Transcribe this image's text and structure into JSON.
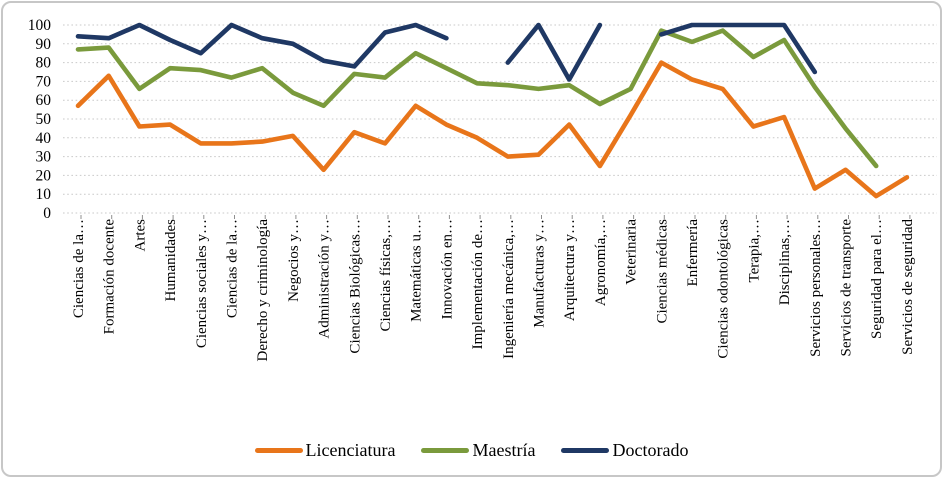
{
  "chart_data": {
    "type": "line",
    "title": "",
    "xlabel": "",
    "ylabel": "",
    "ylim": [
      0,
      100
    ],
    "ytick_step": 10,
    "ytick_labels": [
      "0",
      "10",
      "20",
      "30",
      "40",
      "50",
      "60",
      "70",
      "80",
      "90",
      "100"
    ],
    "grid": "horizontal-dotted",
    "legend_position": "bottom",
    "categories": [
      "Ciencias de la…",
      "Formación docente",
      "Artes",
      "Humanidades",
      "Ciencias sociales y…",
      "Ciencias de la…",
      "Derecho y criminología",
      "Negocios y…",
      "Administración y…",
      "Ciencias Biológicas…",
      "Ciencias físicas,…",
      "Matemáticas u…",
      "Innovación en…",
      "Implementación de…",
      "Ingeniería mecánica,…",
      "Manufacturas y…",
      "Arquitectura y…",
      "Agronomía,…",
      "Veterinaria",
      "Ciencias médicas",
      "Enfermería",
      "Ciencias odontológicas",
      "Terapia,…",
      "Disciplinas,…",
      "Servicios personales…",
      "Servicios de transporte",
      "Seguridad para el…",
      "Servicios de seguridad"
    ],
    "series": [
      {
        "name": "Licenciatura",
        "color": "#E8751A",
        "values": [
          57,
          73,
          46,
          47,
          37,
          37,
          38,
          41,
          23,
          43,
          37,
          57,
          47,
          40,
          30,
          31,
          47,
          25,
          52,
          80,
          71,
          66,
          46,
          51,
          13,
          23,
          9,
          19
        ]
      },
      {
        "name": "Maestría",
        "color": "#7A9A3C",
        "values": [
          87,
          88,
          66,
          77,
          76,
          72,
          77,
          64,
          57,
          74,
          72,
          85,
          77,
          69,
          68,
          66,
          68,
          58,
          66,
          97,
          91,
          97,
          83,
          92,
          67,
          45,
          25,
          null
        ]
      },
      {
        "name": "Doctorado",
        "color": "#1F3864",
        "values": [
          94,
          93,
          100,
          92,
          85,
          100,
          93,
          90,
          81,
          78,
          96,
          100,
          93,
          null,
          80,
          100,
          71,
          100,
          null,
          95,
          100,
          100,
          100,
          100,
          75,
          null,
          null,
          null
        ]
      }
    ]
  },
  "colors": {
    "grid": "#c9c9c9",
    "tick": "#8f8f8f",
    "text": "#000000",
    "frame_border": "#c7c7c7",
    "background": "#ffffff"
  }
}
